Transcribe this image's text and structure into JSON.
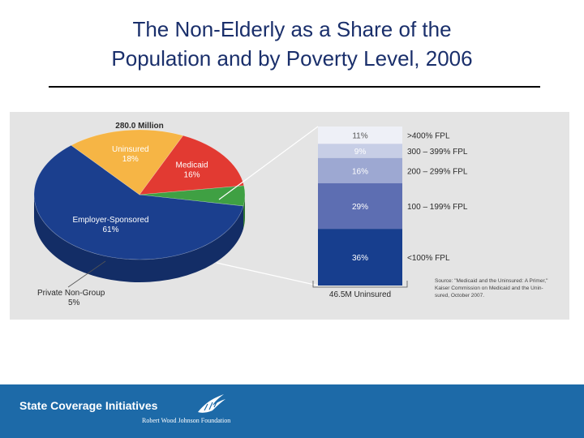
{
  "title_line1": "The Non-Elderly as a Share of the",
  "title_line2": "Population and by Poverty Level, 2006",
  "chart_data": [
    {
      "type": "pie",
      "title": "280.0 Million",
      "slices": [
        {
          "label": "Employer-Sponsored",
          "value": 61,
          "pct_label": "61%",
          "color": "#1b3f8e"
        },
        {
          "label": "Uninsured",
          "value": 18,
          "pct_label": "18%",
          "color": "#f6b545"
        },
        {
          "label": "Medicaid",
          "value": 16,
          "pct_label": "16%",
          "color": "#e23a32"
        },
        {
          "label": "Private Non-Group",
          "value": 5,
          "pct_label": "5%",
          "color": "#3fa043"
        }
      ]
    },
    {
      "type": "bar",
      "stacked": true,
      "xlabel": "46.5M Uninsured",
      "categories": [
        ">400% FPL",
        "300 – 399% FPL",
        "200 – 299% FPL",
        "100 – 199% FPL",
        "<100% FPL"
      ],
      "values": [
        11,
        9,
        16,
        29,
        36
      ],
      "value_labels": [
        "11%",
        "9%",
        "16%",
        "29%",
        "36%"
      ],
      "colors": [
        "#eef0f7",
        "#c7cee6",
        "#9da8d2",
        "#5d6eb2",
        "#173e8e"
      ],
      "label_colors": [
        "#555555",
        "#ffffff",
        "#ffffff",
        "#ffffff",
        "#ffffff"
      ]
    }
  ],
  "source_note": [
    "Source: \"Medicaid and the Uninsured: A Primer,\"",
    "Kaiser Commission on Medicaid and the Unin-",
    "sured, October 2007."
  ],
  "footer": {
    "title": "State Coverage Initiatives",
    "subtitle": "Robert Wood Johnson Foundation"
  },
  "colors": {
    "title": "#1a2f6b",
    "footer_bg": "#1d6aa8",
    "panel_bg": "#e4e4e4"
  }
}
